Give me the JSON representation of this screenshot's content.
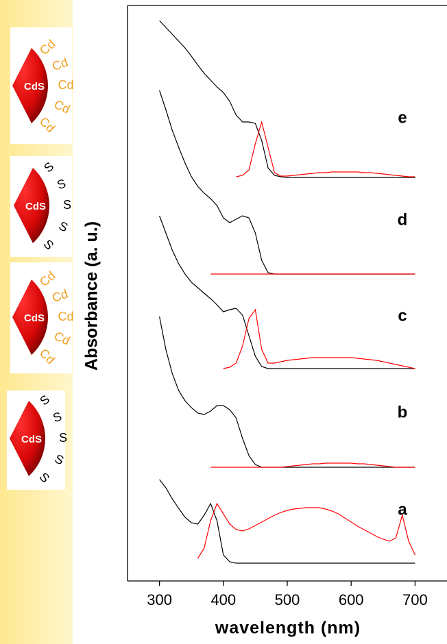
{
  "chart_data": {
    "type": "line",
    "x_label": "wavelength (nm)",
    "y_label": "Absorbance (a. u.)",
    "xlim": [
      250,
      750
    ],
    "xticks": [
      300,
      400,
      500,
      600,
      700
    ],
    "ylim": [
      0,
      840
    ],
    "absorption_color": "#000000",
    "emission_color": "#ff0000",
    "x": [
      300,
      310,
      320,
      330,
      340,
      350,
      360,
      370,
      380,
      390,
      400,
      410,
      420,
      430,
      440,
      450,
      460,
      470,
      480,
      490,
      500,
      510,
      520,
      530,
      540,
      550,
      560,
      570,
      580,
      590,
      600,
      610,
      620,
      630,
      640,
      650,
      660,
      670,
      680,
      690,
      700
    ],
    "series": [
      {
        "name": "a",
        "absorption": [
          148,
          136,
          120,
          106,
          93,
          85,
          83,
          96,
          113,
          88,
          38,
          28,
          26,
          26,
          26,
          26,
          26,
          26,
          26,
          26,
          26,
          26,
          26,
          26,
          26,
          26,
          26,
          26,
          26,
          26,
          26,
          26,
          26,
          26,
          26,
          26,
          26,
          26,
          26,
          26,
          26
        ],
        "emission": [
          null,
          null,
          null,
          null,
          null,
          null,
          33,
          48,
          88,
          113,
          98,
          83,
          75,
          73,
          76,
          81,
          86,
          91,
          96,
          100,
          103,
          105,
          106,
          107,
          107,
          107,
          105,
          102,
          98,
          92,
          86,
          80,
          75,
          70,
          65,
          61,
          58,
          63,
          96,
          58,
          38
        ]
      },
      {
        "name": "b",
        "absorption": [
          386,
          338,
          303,
          278,
          263,
          253,
          245,
          243,
          248,
          256,
          256,
          250,
          238,
          208,
          183,
          170,
          166,
          166,
          166,
          166,
          166,
          166,
          166,
          166,
          166,
          166,
          166,
          166,
          166,
          166,
          166,
          166,
          166,
          166,
          166,
          166,
          166,
          166,
          166,
          166,
          166
        ],
        "emission": [
          null,
          null,
          null,
          null,
          null,
          null,
          null,
          null,
          166,
          166,
          166,
          166,
          166,
          166,
          166,
          166,
          166,
          166,
          166,
          166,
          167,
          168,
          169,
          170,
          171,
          171,
          172,
          172,
          172,
          172,
          172,
          171,
          171,
          170,
          169,
          168,
          167,
          166,
          166,
          166,
          166
        ]
      },
      {
        "name": "c",
        "absorption": [
          533,
          508,
          483,
          463,
          448,
          436,
          428,
          420,
          412,
          403,
          393,
          396,
          398,
          388,
          358,
          328,
          313,
          310,
          310,
          310,
          310,
          310,
          310,
          310,
          310,
          310,
          310,
          310,
          310,
          310,
          310,
          310,
          310,
          310,
          310,
          310,
          310,
          310,
          310,
          310,
          310
        ],
        "emission": [
          null,
          null,
          null,
          null,
          null,
          null,
          null,
          null,
          null,
          null,
          310,
          312,
          318,
          343,
          383,
          396,
          338,
          318,
          318,
          320,
          322,
          323,
          324,
          325,
          326,
          326,
          326,
          326,
          326,
          326,
          326,
          325,
          324,
          323,
          322,
          320,
          318,
          316,
          314,
          312,
          310
        ]
      },
      {
        "name": "d",
        "absorption": [
          716,
          688,
          658,
          633,
          610,
          590,
          576,
          566,
          558,
          548,
          530,
          523,
          528,
          533,
          530,
          508,
          468,
          450,
          448,
          448,
          448,
          448,
          448,
          448,
          448,
          448,
          448,
          448,
          448,
          448,
          448,
          448,
          448,
          448,
          448,
          448,
          448,
          448,
          448,
          448,
          448
        ],
        "emission": [
          null,
          null,
          null,
          null,
          null,
          null,
          null,
          null,
          448,
          448,
          448,
          448,
          448,
          448,
          448,
          448,
          448,
          448,
          448,
          448,
          448,
          448,
          448,
          448,
          448,
          448,
          448,
          448,
          448,
          448,
          448,
          448,
          448,
          448,
          448,
          448,
          448,
          448,
          448,
          448,
          448
        ]
      },
      {
        "name": "e",
        "absorption": [
          818,
          808,
          798,
          788,
          778,
          766,
          753,
          741,
          731,
          721,
          713,
          700,
          680,
          670,
          670,
          668,
          643,
          603,
          592,
          590,
          589,
          589,
          589,
          589,
          589,
          589,
          589,
          589,
          589,
          589,
          589,
          589,
          589,
          589,
          589,
          589,
          589,
          589,
          589,
          589,
          589
        ],
        "emission": [
          null,
          null,
          null,
          null,
          null,
          null,
          null,
          null,
          null,
          null,
          null,
          null,
          590,
          592,
          600,
          638,
          670,
          633,
          596,
          591,
          591,
          592,
          593,
          594,
          595,
          596,
          596,
          597,
          597,
          597,
          597,
          597,
          596,
          596,
          595,
          594,
          593,
          592,
          591,
          590,
          590
        ]
      }
    ]
  },
  "ligand_icons": [
    {
      "core": "CdS",
      "ligands": [
        "Cd",
        "Cd",
        "Cd",
        "Cd",
        "Cd"
      ],
      "ligand_color": "#f0a020"
    },
    {
      "core": "CdS",
      "ligands": [
        "S",
        "S",
        "S",
        "S",
        "S"
      ],
      "ligand_color": "#000000"
    },
    {
      "core": "CdS",
      "ligands": [
        "Cd",
        "Cd",
        "Cd",
        "Cd",
        "Cd"
      ],
      "ligand_color": "#f0a020"
    },
    {
      "core": "CdS",
      "ligands": [
        "S",
        "S",
        "S",
        "S",
        "S"
      ],
      "ligand_color": "#000000"
    }
  ]
}
